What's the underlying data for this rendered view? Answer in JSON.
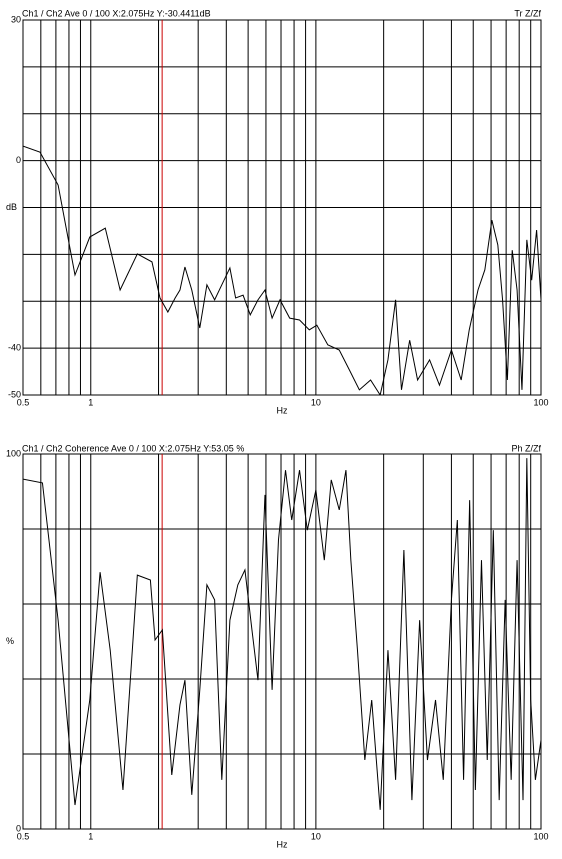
{
  "chart_data": [
    {
      "type": "line",
      "title": "Ch1 / Ch2  Ave 0 / 100  X:2.075Hz  Y:-30.4411dB",
      "trace_label": "Tr Z/Zf",
      "xlabel": "Hz",
      "ylabel": "dB",
      "log_x": true,
      "x": [
        0.5,
        0.595,
        0.716,
        0.851,
        0.99,
        1.16,
        1.35,
        1.61,
        1.87,
        2.03,
        2.2,
        2.37,
        2.49,
        2.62,
        2.81,
        3.05,
        3.28,
        3.55,
        3.82,
        4.15,
        4.4,
        4.75,
        5.11,
        5.53,
        5.94,
        6.39,
        6.93,
        7.65,
        8.46,
        9.35,
        10.1,
        11.3,
        12.7,
        14.1,
        15.6,
        17.5,
        19.3,
        20.9,
        22.6,
        24.0,
        26.1,
        28.3,
        32.0,
        35.4,
        40.0,
        44.2,
        48,
        52.5,
        56.3,
        60.5,
        64.3,
        67.5,
        70.9,
        74.5,
        78.3,
        82.3,
        86.5,
        90.9,
        95.6,
        100
      ],
      "series": [
        {
          "color": "#000000",
          "values": [
            3.1,
            1.8,
            -5.2,
            -24.4,
            -16.3,
            -14.4,
            -27.6,
            -19.9,
            -21.6,
            -29.3,
            -32.3,
            -29.3,
            -27.6,
            -22.7,
            -27.6,
            -35.7,
            -26.5,
            -29.7,
            -26.5,
            -22.9,
            -29.3,
            -28.7,
            -32.9,
            -29.7,
            -27.6,
            -33.6,
            -29.7,
            -33.6,
            -34.0,
            -36.1,
            -35.1,
            -39.3,
            -40.4,
            -44.7,
            -48.9,
            -46.8,
            -50,
            -42.5,
            -29.7,
            -48.9,
            -38.3,
            -46.8,
            -42.5,
            -47.9,
            -40.4,
            -46.8,
            -36.1,
            -27.6,
            -23.3,
            -12.7,
            -18.0,
            -29.7,
            -46.8,
            -19.1,
            -27.6,
            -48.9,
            -16.9,
            -25.5,
            -14.8,
            -29.7
          ]
        }
      ],
      "xlim": [
        0.5,
        100
      ],
      "ylim": [
        -50,
        30
      ],
      "xticks": [
        0.5,
        1,
        10,
        100
      ],
      "yticks": [
        30,
        0,
        -40,
        -50
      ],
      "xgrid": [
        0.6,
        0.7,
        0.8,
        0.9,
        2,
        3,
        4,
        5,
        6,
        7,
        8,
        9,
        20,
        30,
        40,
        50,
        60,
        70,
        80,
        90
      ],
      "ygrid": [
        20,
        10,
        -10,
        -20,
        -30
      ],
      "grid_color": "#000000",
      "cursor_x": 2.075,
      "cursor_color": "#cc0000"
    },
    {
      "type": "line",
      "title": "Ch1 / Ch2  Coherence Ave 0 / 100  X:2.075Hz  Y:53.05 %",
      "trace_label": "Ph Z/Zf",
      "xlabel": "Hz",
      "ylabel": "%",
      "log_x": true,
      "x": [
        0.5,
        0.61,
        0.716,
        0.851,
        0.99,
        1.1,
        1.22,
        1.39,
        1.61,
        1.84,
        1.93,
        2.08,
        2.29,
        2.49,
        2.62,
        2.81,
        3.05,
        3.28,
        3.55,
        3.82,
        4.15,
        4.5,
        4.84,
        5.2,
        5.53,
        5.94,
        6.39,
        6.82,
        7.33,
        7.81,
        8.46,
        9.16,
        10.0,
        10.9,
        11.7,
        12.7,
        13.6,
        14.3,
        15.3,
        16.5,
        17.7,
        19.3,
        20.9,
        22.6,
        24.6,
        26.7,
        28.9,
        31.3,
        34.0,
        36.8,
        40.0,
        42.5,
        45.3,
        48.2,
        51.1,
        54.4,
        57.7,
        61.4,
        65.2,
        69.3,
        73.7,
        78.3,
        83.2,
        86.5,
        90.0,
        94.4,
        100
      ],
      "series": [
        {
          "color": "#000000",
          "values": [
            93.3,
            92.3,
            55.7,
            6.4,
            34.4,
            68.5,
            47.7,
            10.4,
            67.7,
            66.4,
            50.4,
            53.1,
            14.4,
            33.1,
            39.7,
            9.1,
            37.1,
            65.1,
            61.1,
            13.1,
            55.7,
            65.1,
            69.1,
            53.1,
            39.7,
            89.1,
            37.1,
            77.1,
            95.7,
            82.4,
            95.7,
            79.7,
            90.4,
            71.7,
            93.1,
            85.1,
            95.7,
            71.7,
            47.7,
            18.4,
            34.4,
            5.1,
            47.7,
            13.1,
            74.4,
            7.7,
            55.7,
            18.4,
            34.4,
            13.1,
            61.1,
            82.4,
            13.1,
            87.7,
            10.4,
            71.7,
            18.4,
            79.7,
            7.7,
            61.1,
            13.1,
            71.7,
            7.7,
            98.9,
            34.4,
            13.1,
            23.7
          ]
        }
      ],
      "xlim": [
        0.5,
        100
      ],
      "ylim": [
        0,
        100
      ],
      "xticks": [
        0.5,
        1,
        10,
        100
      ],
      "yticks": [
        100,
        0
      ],
      "xgrid": [
        0.6,
        0.7,
        0.8,
        0.9,
        2,
        3,
        4,
        5,
        6,
        7,
        8,
        9,
        20,
        30,
        40,
        50,
        60,
        70,
        80,
        90
      ],
      "ygrid": [
        80,
        60,
        40,
        20
      ],
      "grid_color": "#000000",
      "cursor_x": 2.075,
      "cursor_color": "#cc0000"
    }
  ]
}
